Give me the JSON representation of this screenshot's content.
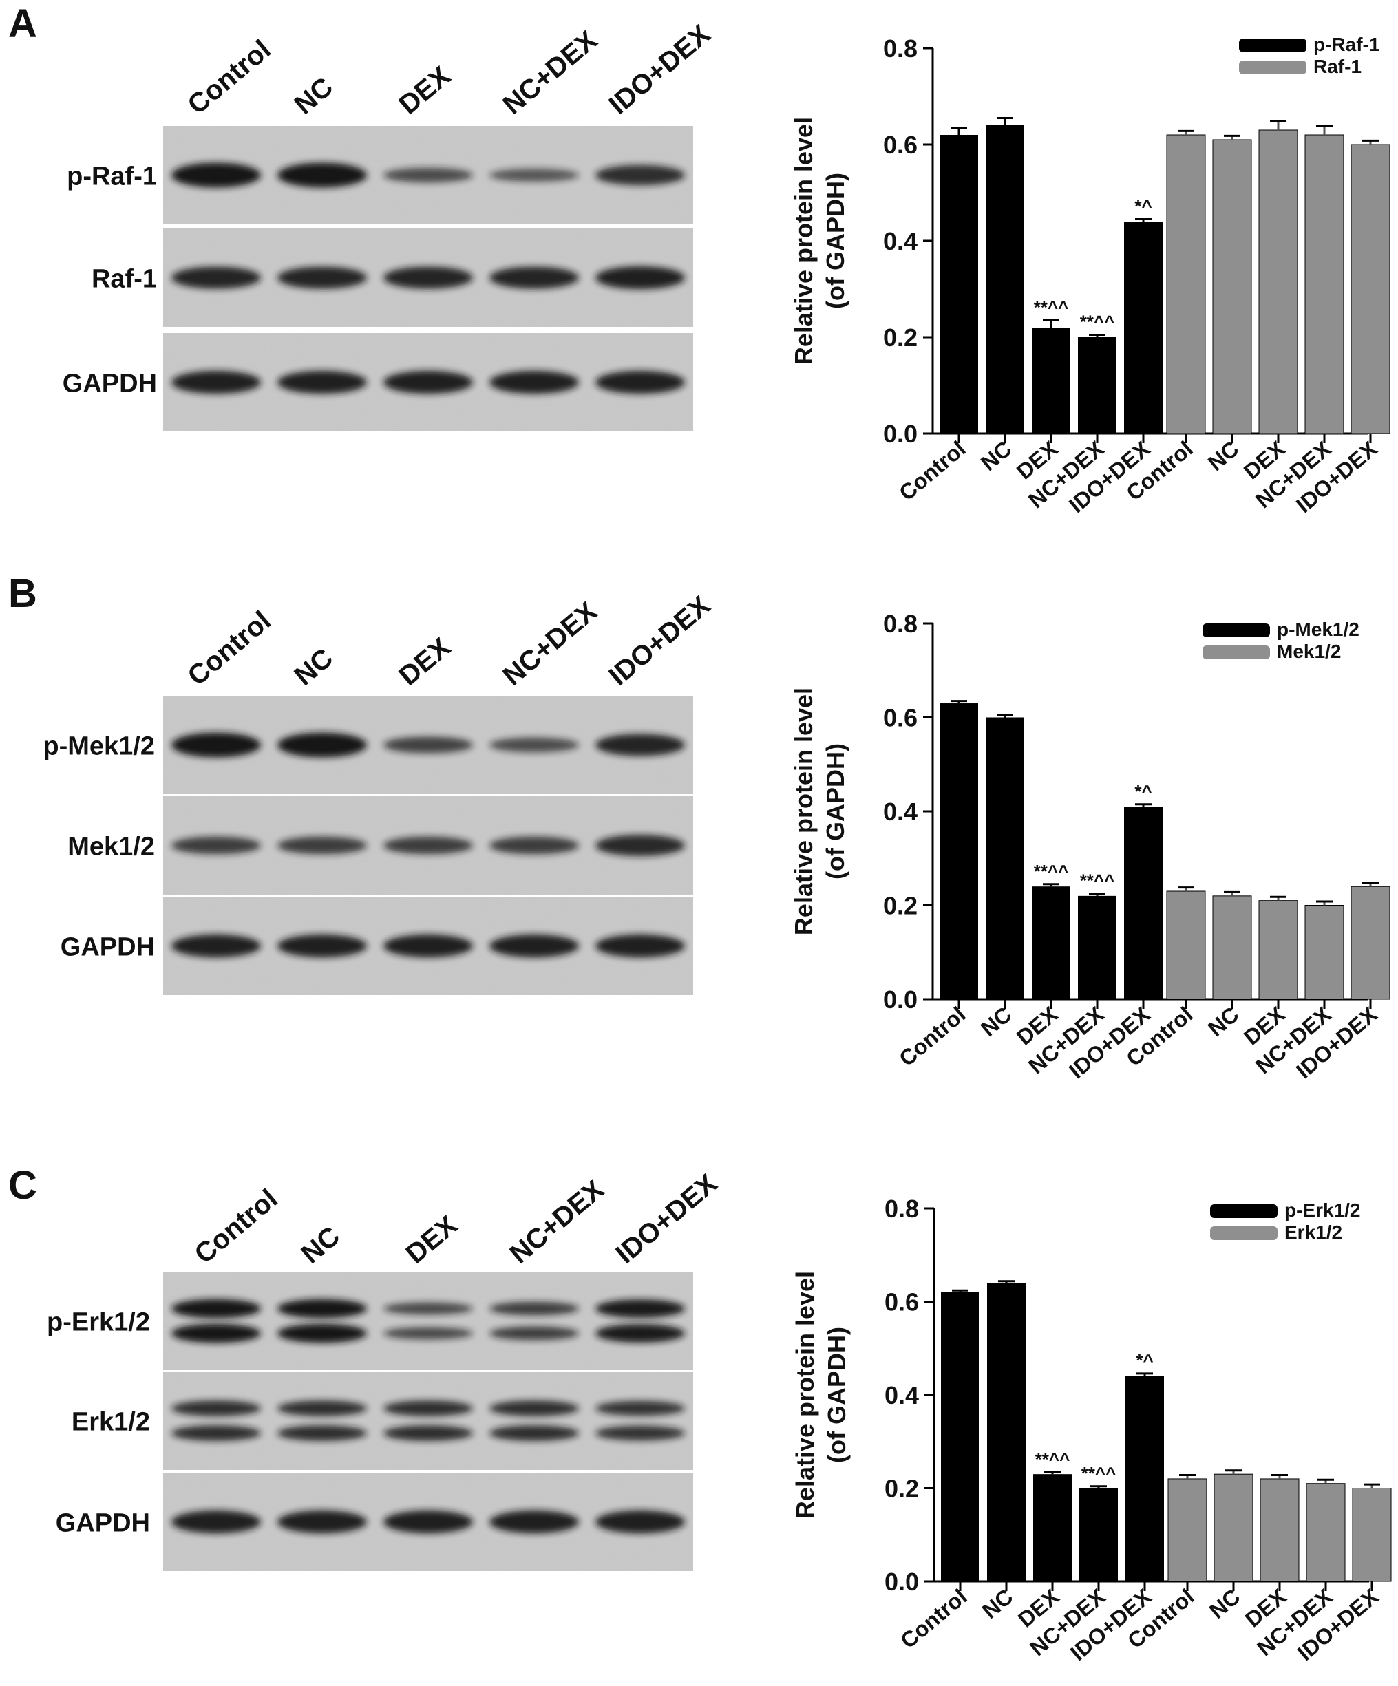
{
  "lanes": [
    "Control",
    "NC",
    "DEX",
    "NC+DEX",
    "IDO+DEX"
  ],
  "colors": {
    "phospho": "#000000",
    "total": "#8f8f8f",
    "blot_bg": "#c8c8c8",
    "band": "#141414"
  },
  "panels": [
    {
      "letter": "A",
      "blot_labels": [
        "p-Raf-1",
        "Raf-1",
        "GAPDH"
      ],
      "band_intensity": [
        [
          1.0,
          1.0,
          0.45,
          0.35,
          0.75
        ],
        [
          0.85,
          0.85,
          0.85,
          0.85,
          0.9
        ],
        [
          0.9,
          0.9,
          0.9,
          0.9,
          0.9
        ]
      ],
      "double_band": [
        false,
        false,
        false
      ],
      "chart_data": {
        "type": "bar",
        "ylabel": [
          "Relative protein level",
          "(of GAPDH)"
        ],
        "ylim": [
          0,
          0.8
        ],
        "yticks": [
          "0.0",
          "0.2",
          "0.4",
          "0.6",
          "0.8"
        ],
        "categories": [
          "Control",
          "NC",
          "DEX",
          "NC+DEX",
          "IDO+DEX"
        ],
        "series": [
          {
            "name": "p-Raf-1",
            "color": "#000000",
            "values": [
              0.62,
              0.64,
              0.22,
              0.2,
              0.44
            ],
            "errors": [
              0.015,
              0.015,
              0.015,
              0.005,
              0.005
            ],
            "annotations": [
              "",
              "",
              "**^^",
              "**^^",
              "*^"
            ]
          },
          {
            "name": "Raf-1",
            "color": "#8f8f8f",
            "values": [
              0.62,
              0.61,
              0.63,
              0.62,
              0.6
            ],
            "errors": [
              0.008,
              0.008,
              0.018,
              0.018,
              0.008
            ],
            "annotations": [
              "",
              "",
              "",
              "",
              ""
            ]
          }
        ],
        "legend": "top-right"
      }
    },
    {
      "letter": "B",
      "blot_labels": [
        "p-Mek1/2",
        "Mek1/2",
        "GAPDH"
      ],
      "band_intensity": [
        [
          1.0,
          1.0,
          0.55,
          0.45,
          0.85
        ],
        [
          0.6,
          0.6,
          0.6,
          0.6,
          0.8
        ],
        [
          0.9,
          0.9,
          0.9,
          0.9,
          0.9
        ]
      ],
      "double_band": [
        false,
        false,
        false
      ],
      "chart_data": {
        "type": "bar",
        "ylabel": [
          "Relative protein level",
          "(of GAPDH)"
        ],
        "ylim": [
          0,
          0.8
        ],
        "yticks": [
          "0.0",
          "0.2",
          "0.4",
          "0.6",
          "0.8"
        ],
        "categories": [
          "Control",
          "NC",
          "DEX",
          "NC+DEX",
          "IDO+DEX"
        ],
        "series": [
          {
            "name": "p-Mek1/2",
            "color": "#000000",
            "values": [
              0.63,
              0.6,
              0.24,
              0.22,
              0.41
            ],
            "errors": [
              0.005,
              0.005,
              0.005,
              0.005,
              0.005
            ],
            "annotations": [
              "",
              "",
              "**^^",
              "**^^",
              "*^"
            ]
          },
          {
            "name": "Mek1/2",
            "color": "#8f8f8f",
            "values": [
              0.23,
              0.22,
              0.21,
              0.2,
              0.24
            ],
            "errors": [
              0.008,
              0.008,
              0.008,
              0.008,
              0.008
            ],
            "annotations": [
              "",
              "",
              "",
              "",
              ""
            ]
          }
        ],
        "legend": "top-right"
      }
    },
    {
      "letter": "C",
      "blot_labels": [
        "p-Erk1/2",
        "Erk1/2",
        "GAPDH"
      ],
      "band_intensity": [
        [
          1.0,
          1.0,
          0.5,
          0.6,
          0.95
        ],
        [
          0.75,
          0.75,
          0.75,
          0.75,
          0.7
        ],
        [
          0.9,
          0.9,
          0.9,
          0.9,
          0.9
        ]
      ],
      "double_band": [
        true,
        true,
        false
      ],
      "chart_data": {
        "type": "bar",
        "ylabel": [
          "Relative protein level",
          "(of GAPDH)"
        ],
        "ylim": [
          0,
          0.8
        ],
        "yticks": [
          "0.0",
          "0.2",
          "0.4",
          "0.6",
          "0.8"
        ],
        "categories": [
          "Control",
          "NC",
          "DEX",
          "NC+DEX",
          "IDO+DEX"
        ],
        "series": [
          {
            "name": "p-Erk1/2",
            "color": "#000000",
            "values": [
              0.62,
              0.64,
              0.23,
              0.2,
              0.44
            ],
            "errors": [
              0.004,
              0.004,
              0.004,
              0.004,
              0.006
            ],
            "annotations": [
              "",
              "",
              "**^^",
              "**^^",
              "*^"
            ]
          },
          {
            "name": "Erk1/2",
            "color": "#8f8f8f",
            "values": [
              0.22,
              0.23,
              0.22,
              0.21,
              0.2
            ],
            "errors": [
              0.008,
              0.008,
              0.008,
              0.008,
              0.008
            ],
            "annotations": [
              "",
              "",
              "",
              "",
              ""
            ]
          }
        ],
        "legend": "top-right"
      }
    }
  ]
}
